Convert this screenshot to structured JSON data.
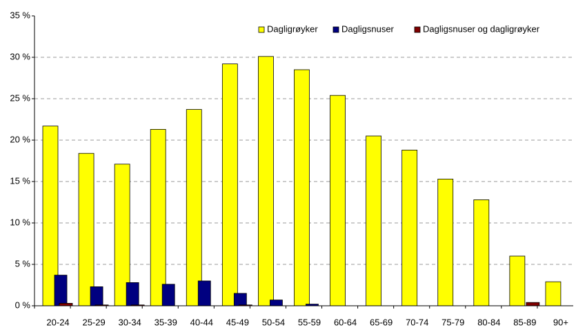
{
  "chart_data": {
    "type": "bar",
    "categories": [
      "20-24",
      "25-29",
      "30-34",
      "35-39",
      "40-44",
      "45-49",
      "50-54",
      "55-59",
      "60-64",
      "65-69",
      "70-74",
      "75-79",
      "80-84",
      "85-89",
      "90+"
    ],
    "series": [
      {
        "name": "Dagligrøyker",
        "color": "#ffff00",
        "values": [
          21.7,
          18.4,
          17.1,
          21.3,
          23.7,
          29.2,
          30.1,
          28.5,
          25.4,
          20.5,
          18.8,
          15.3,
          12.8,
          6.0,
          2.9
        ]
      },
      {
        "name": "Dagligsnuser",
        "color": "#000080",
        "values": [
          3.7,
          2.3,
          2.8,
          2.6,
          3.0,
          1.5,
          0.7,
          0.2,
          0,
          0,
          0,
          0,
          0,
          0,
          0
        ]
      },
      {
        "name": "Dagligsnuser og dagligrøyker",
        "color": "#800000",
        "values": [
          0.3,
          0.1,
          0.1,
          0,
          0,
          0.1,
          0,
          0,
          0,
          0,
          0,
          0,
          0,
          0.4,
          0
        ]
      }
    ],
    "ylim": [
      0,
      35
    ],
    "yticks": [
      {
        "value": 0,
        "label": "0 %"
      },
      {
        "value": 5,
        "label": "5 %"
      },
      {
        "value": 10,
        "label": "10 %"
      },
      {
        "value": 15,
        "label": "15 %"
      },
      {
        "value": 20,
        "label": "20 %"
      },
      {
        "value": 25,
        "label": "25 %"
      },
      {
        "value": 30,
        "label": "30 %"
      },
      {
        "value": 35,
        "label": "35 %"
      }
    ],
    "grid": true,
    "legend": "top-right"
  }
}
